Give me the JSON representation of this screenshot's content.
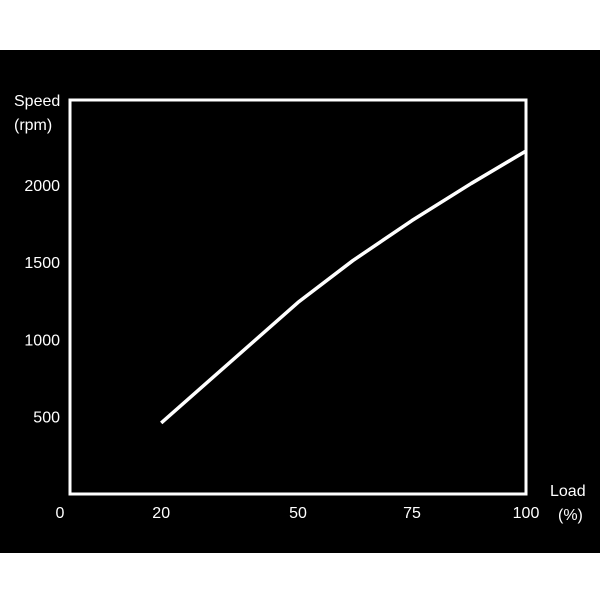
{
  "chart_data": {
    "type": "line",
    "ylabel_line1": "Speed",
    "ylabel_line2": "(rpm)",
    "xlabel_line1": "Load",
    "xlabel_line2": "(%)",
    "x_ticks": [
      {
        "value": 0,
        "label": "0"
      },
      {
        "value": 20,
        "label": "20"
      },
      {
        "value": 50,
        "label": "50"
      },
      {
        "value": 75,
        "label": "75"
      },
      {
        "value": 100,
        "label": "100"
      }
    ],
    "y_ticks": [
      {
        "value": 500,
        "label": "500"
      },
      {
        "value": 1000,
        "label": "1000"
      },
      {
        "value": 1500,
        "label": "1500"
      },
      {
        "value": 2000,
        "label": "2000"
      }
    ],
    "xlim": [
      0,
      100
    ],
    "ylim": [
      0,
      2550
    ],
    "grid": "horizontal",
    "series": [
      {
        "x": [
          20,
          35,
          50,
          62,
          75,
          88,
          100
        ],
        "y": [
          460,
          850,
          1240,
          1510,
          1770,
          2010,
          2220
        ]
      }
    ],
    "colors": {
      "background": "#000000",
      "foreground": "#ffffff",
      "grid": "#555555"
    }
  }
}
